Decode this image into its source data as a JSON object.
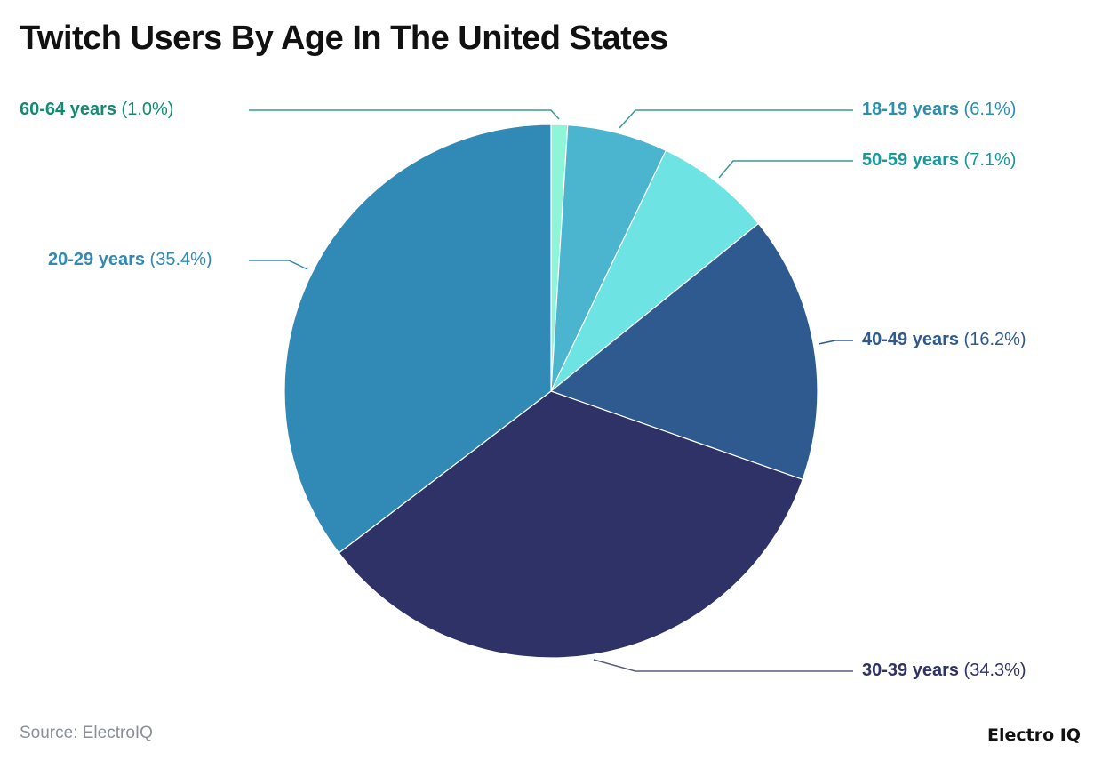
{
  "chart_data": {
    "type": "pie",
    "title": "Twitch Users By Age In The United States",
    "start_angle": "top, clockwise",
    "slices": [
      {
        "label": "60-64 years",
        "value": 1.0,
        "display": "(1.0%)",
        "color": "#8ef5d6",
        "label_color": "#138a72"
      },
      {
        "label": "18-19 years",
        "value": 6.1,
        "display": "(6.1%)",
        "color": "#4bb4cf",
        "label_color": "#2a8fae"
      },
      {
        "label": "50-59 years",
        "value": 7.1,
        "display": "(7.1%)",
        "color": "#6ee3e3",
        "label_color": "#17999b"
      },
      {
        "label": "40-49 years",
        "value": 16.2,
        "display": "(16.2%)",
        "color": "#2e5a8f",
        "label_color": "#2e5a8f"
      },
      {
        "label": "30-39 years",
        "value": 34.3,
        "display": "(34.3%)",
        "color": "#2f3266",
        "label_color": "#2f3266"
      },
      {
        "label": "20-29 years",
        "value": 35.4,
        "display": "(35.4%)",
        "color": "#318ab5",
        "label_color": "#318ab5"
      }
    ]
  },
  "footer": {
    "source": "Source: ElectroIQ",
    "logo": "Electro IQ"
  }
}
